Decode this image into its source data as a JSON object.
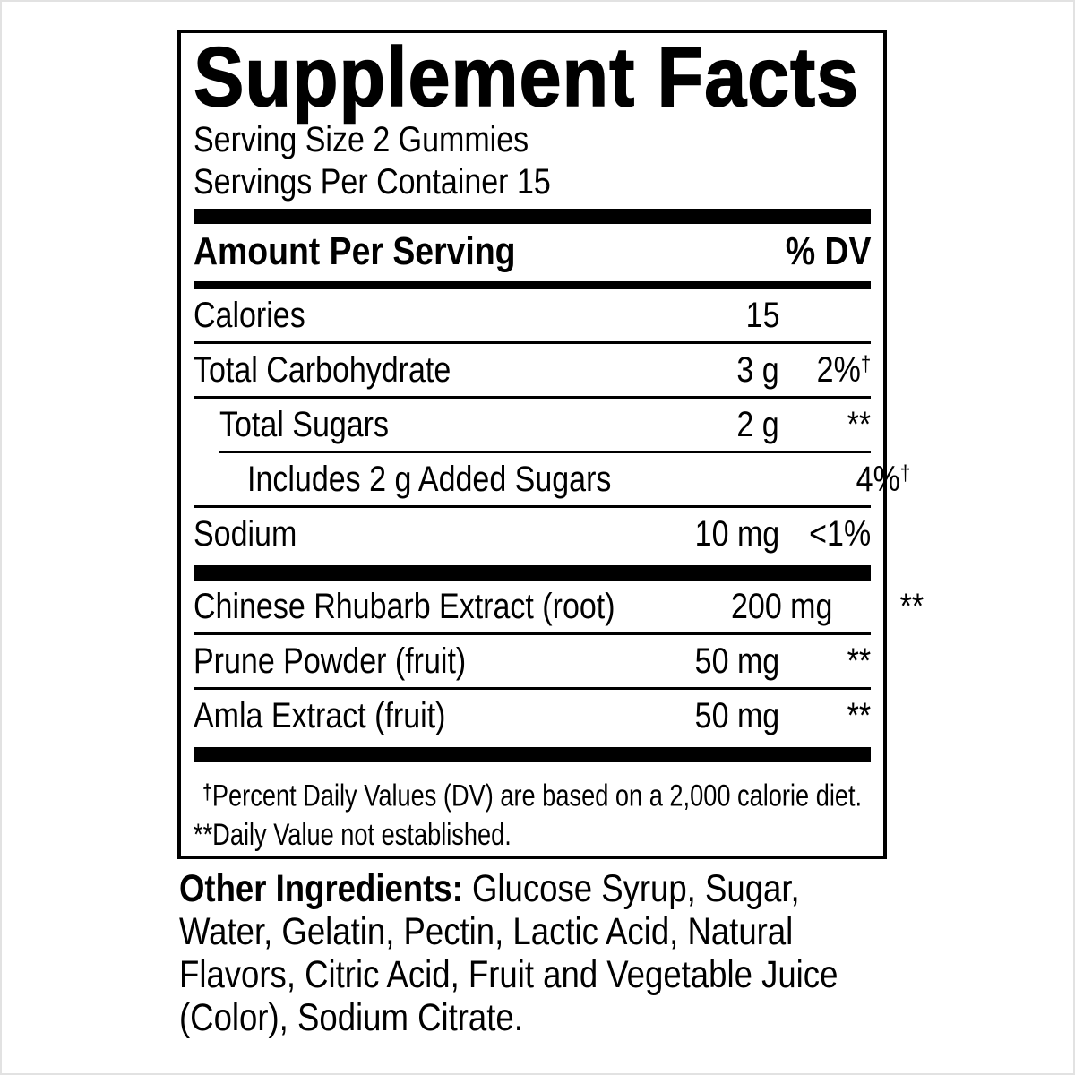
{
  "colors": {
    "text": "#000000",
    "background": "#ffffff",
    "rule": "#000000"
  },
  "supplement_facts": {
    "title": "Supplement Facts",
    "serving_size": "Serving Size 2 Gummies",
    "servings_per_container": "Servings Per Container 15",
    "columns": {
      "amount_header": "Amount Per Serving",
      "dv_header": "% DV"
    },
    "rows": [
      {
        "name": "Calories",
        "amount": "15",
        "dv": "",
        "dv_sup": "",
        "indent": 0,
        "sep_after": "thin"
      },
      {
        "name": "Total Carbohydrate",
        "amount": "3 g",
        "dv": "2%",
        "dv_sup": "†",
        "indent": 0,
        "sep_after": "thin"
      },
      {
        "name": "Total Sugars",
        "amount": "2 g",
        "dv": "**",
        "dv_sup": "",
        "indent": 1,
        "sep_after": "thin-indent"
      },
      {
        "name": "Includes 2 g Added Sugars",
        "amount": "",
        "dv": "4%",
        "dv_sup": "†",
        "indent": 2,
        "sep_after": "thin"
      },
      {
        "name": "Sodium",
        "amount": "10 mg",
        "dv": "<1%",
        "dv_sup": "",
        "indent": 0,
        "sep_after": "thick"
      },
      {
        "name": "Chinese Rhubarb Extract (root)",
        "amount": "200 mg",
        "dv": "**",
        "dv_sup": "",
        "indent": 0,
        "sep_after": "thin"
      },
      {
        "name": "Prune Powder (fruit)",
        "amount": "50 mg",
        "dv": "**",
        "dv_sup": "",
        "indent": 0,
        "sep_after": "thin"
      },
      {
        "name": "Amla Extract (fruit)",
        "amount": "50 mg",
        "dv": "**",
        "dv_sup": "",
        "indent": 0,
        "sep_after": "thick"
      }
    ],
    "footnotes": [
      {
        "marker": "†",
        "marker_style": "sup",
        "text": "Percent Daily Values (DV) are based on a 2,000 calorie diet."
      },
      {
        "marker": "**",
        "marker_style": "inline",
        "text": "Daily Value not established."
      }
    ]
  },
  "other_ingredients": {
    "lead": "Other Ingredients:",
    "lines": [
      "Glucose Syrup, Sugar,",
      "Water, Gelatin, Pectin, Lactic Acid, Natural",
      "Flavors, Citric Acid, Fruit and Vegetable Juice",
      "(Color), Sodium Citrate."
    ]
  }
}
